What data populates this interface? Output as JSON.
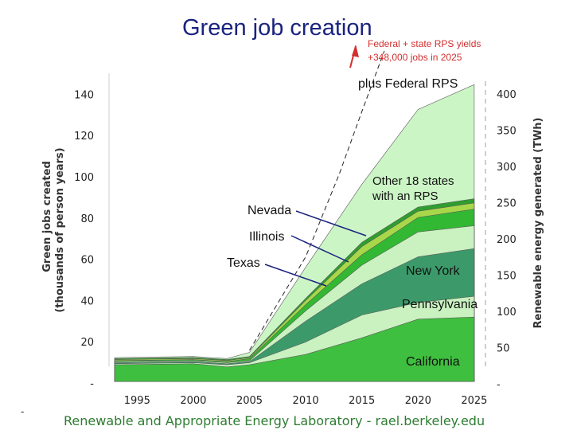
{
  "chart_data": {
    "type": "area",
    "title": "Green job creation",
    "annotation": [
      "Federal + state RPS yields",
      "+348,000 jobs in 2025"
    ],
    "ylabel_left": [
      "Green jobs created",
      "(thousands of person years)"
    ],
    "ylabel_right": "Renewable energy generated (TWh)",
    "x_ticks": [
      "1995",
      "2000",
      "2005",
      "2010",
      "2015",
      "2020",
      "2025"
    ],
    "y_left_ticks": [
      "-",
      "20",
      "40",
      "60",
      "80",
      "100",
      "120",
      "140"
    ],
    "y_right_ticks": [
      "-",
      "50",
      "100",
      "150",
      "200",
      "250",
      "300",
      "350",
      "400"
    ],
    "xlim": [
      1992.5,
      2026
    ],
    "ylim_left": [
      0,
      150
    ],
    "x": [
      1993,
      2000,
      2003,
      2005,
      2010,
      2015,
      2020,
      2025
    ],
    "series": [
      {
        "name": "California",
        "color": "#3fbf3f",
        "cumulative": [
          8,
          8.5,
          7,
          8,
          13,
          21,
          30,
          31
        ]
      },
      {
        "name": "Pennsylvania",
        "color": "#c9f2c0",
        "cumulative": [
          8.5,
          9,
          8,
          9,
          19,
          32,
          38,
          41
        ]
      },
      {
        "name": "New York",
        "color": "#3c9a6a",
        "cumulative": [
          9,
          9.5,
          8.5,
          9.5,
          29,
          47,
          60,
          64
        ]
      },
      {
        "name": "Texas",
        "color": "#c9f2c0",
        "cumulative": [
          9.5,
          10,
          9,
          10,
          34,
          56,
          72,
          75
        ]
      },
      {
        "name": "Illinois",
        "color": "#32b832",
        "cumulative": [
          10,
          10.5,
          9.5,
          11,
          37,
          61,
          79,
          83
        ]
      },
      {
        "name": "Nevada",
        "color": "#a8d84a",
        "cumulative": [
          10.5,
          11,
          10,
          11.5,
          39,
          65,
          82,
          86
        ]
      },
      {
        "name": "Other 18 states with an RPS",
        "color": "#2e9e2e",
        "cumulative": [
          11,
          11.5,
          10.5,
          12,
          40,
          67,
          84,
          88
        ]
      },
      {
        "name": "plus Federal RPS",
        "color": "#ccf5c6",
        "cumulative": [
          11.5,
          12,
          11,
          14,
          55,
          95,
          131,
          143
        ]
      }
    ],
    "federal_trend": {
      "x": [
        2005,
        2010,
        2013,
        2015,
        2017
      ],
      "y": [
        15,
        60,
        100,
        130,
        160
      ]
    },
    "labels": {
      "california": "California",
      "pennsylvania": "Pennsylvania",
      "new_york": "New York",
      "texas": "Texas",
      "illinois": "Illinois",
      "nevada": "Nevada",
      "other_line1": "Other 18 states",
      "other_line2": "with an RPS",
      "federal": "plus Federal RPS"
    },
    "footer": "Renewable and Appropriate Energy Laboratory - rael.berkeley.edu",
    "corner_dash": "-"
  }
}
